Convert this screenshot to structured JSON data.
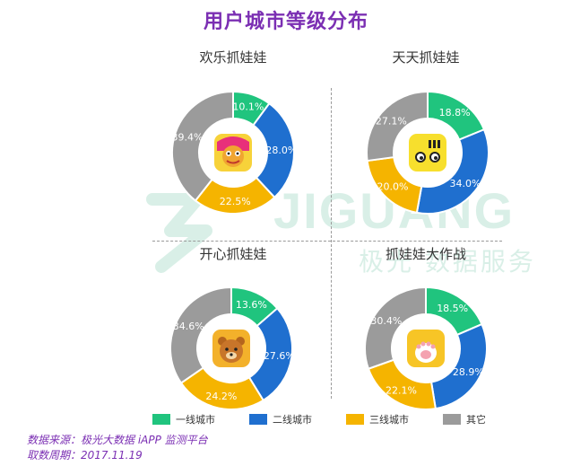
{
  "title": "用户城市等级分布",
  "colors": {
    "tier1": "#20c47e",
    "tier2": "#1f6fcf",
    "tier3": "#f5b400",
    "other": "#9b9b9b",
    "title": "#7b2fb3",
    "watermark": "#1aa36f"
  },
  "watermark": {
    "brand": "JIGUANG",
    "sub": "极光 数据服务"
  },
  "legend": [
    "一线城市",
    "二线城市",
    "三线城市",
    "其它"
  ],
  "source": {
    "line1": "数据来源：极光大数据 iAPP 监测平台",
    "line2": "取数周期：2017.11.19"
  },
  "chart_data": [
    {
      "type": "pie",
      "title": "欢乐抓娃娃",
      "categories": [
        "一线城市",
        "二线城市",
        "三线城市",
        "其它"
      ],
      "values": [
        10.1,
        28.0,
        22.5,
        39.4
      ],
      "labels": [
        "10.1%",
        "28.0%",
        "22.5%",
        "39.4%"
      ],
      "icon": "cartoon-creature-app-icon"
    },
    {
      "type": "pie",
      "title": "天天抓娃娃",
      "categories": [
        "一线城市",
        "二线城市",
        "三线城市",
        "其它"
      ],
      "values": [
        18.8,
        34.0,
        20.0,
        27.1
      ],
      "labels": [
        "18.8%",
        "34.0%",
        "20.0%",
        "27.1%"
      ],
      "icon": "yellow-face-app-icon"
    },
    {
      "type": "pie",
      "title": "开心抓娃娃",
      "categories": [
        "一线城市",
        "二线城市",
        "三线城市",
        "其它"
      ],
      "values": [
        13.6,
        27.6,
        24.2,
        34.6
      ],
      "labels": [
        "13.6%",
        "27.6%",
        "24.2%",
        "34.6%"
      ],
      "icon": "bear-app-icon"
    },
    {
      "type": "pie",
      "title": "抓娃娃大作战",
      "categories": [
        "一线城市",
        "二线城市",
        "三线城市",
        "其它"
      ],
      "values": [
        18.5,
        28.9,
        22.1,
        30.4
      ],
      "labels": [
        "18.5%",
        "28.9%",
        "22.1%",
        "30.4%"
      ],
      "icon": "cat-paw-app-icon"
    }
  ]
}
